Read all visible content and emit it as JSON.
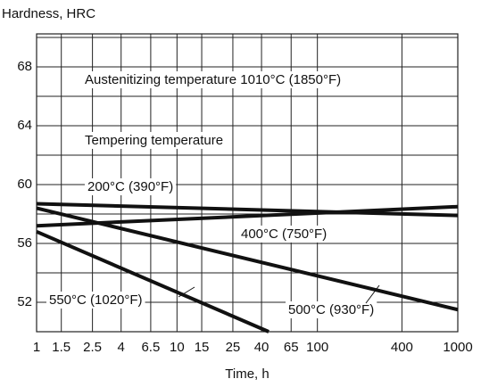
{
  "chart_data": {
    "type": "line",
    "title": "Hardness, HRC",
    "xlabel": "Time, h",
    "annotations": [
      "Austenitizing temperature 1010°C (1850°F)",
      "Tempering temperature"
    ],
    "log_x": true,
    "xlim": [
      1,
      1000
    ],
    "xticks": [
      1,
      1.5,
      2.5,
      4,
      6.5,
      10,
      15,
      25,
      40,
      65,
      100,
      400,
      1000
    ],
    "ylim": [
      50,
      70
    ],
    "yticks": [
      52,
      56,
      60,
      64,
      68
    ],
    "y_grid": [
      50,
      52,
      54,
      56,
      58,
      60,
      62,
      64,
      66,
      68,
      70
    ],
    "grid": true,
    "color": "#111111",
    "series": [
      {
        "name": "200°C (390°F)",
        "x": [
          1,
          1000
        ],
        "values": [
          58.7,
          57.9
        ]
      },
      {
        "name": "400°C (750°F)",
        "x": [
          1,
          1000
        ],
        "values": [
          57.2,
          58.5
        ]
      },
      {
        "name": "500°C (930°F)",
        "x": [
          1,
          1000
        ],
        "values": [
          58.4,
          51.5
        ]
      },
      {
        "name": "550°C (1020°F)",
        "x": [
          1,
          45
        ],
        "values": [
          56.8,
          50
        ]
      }
    ]
  }
}
